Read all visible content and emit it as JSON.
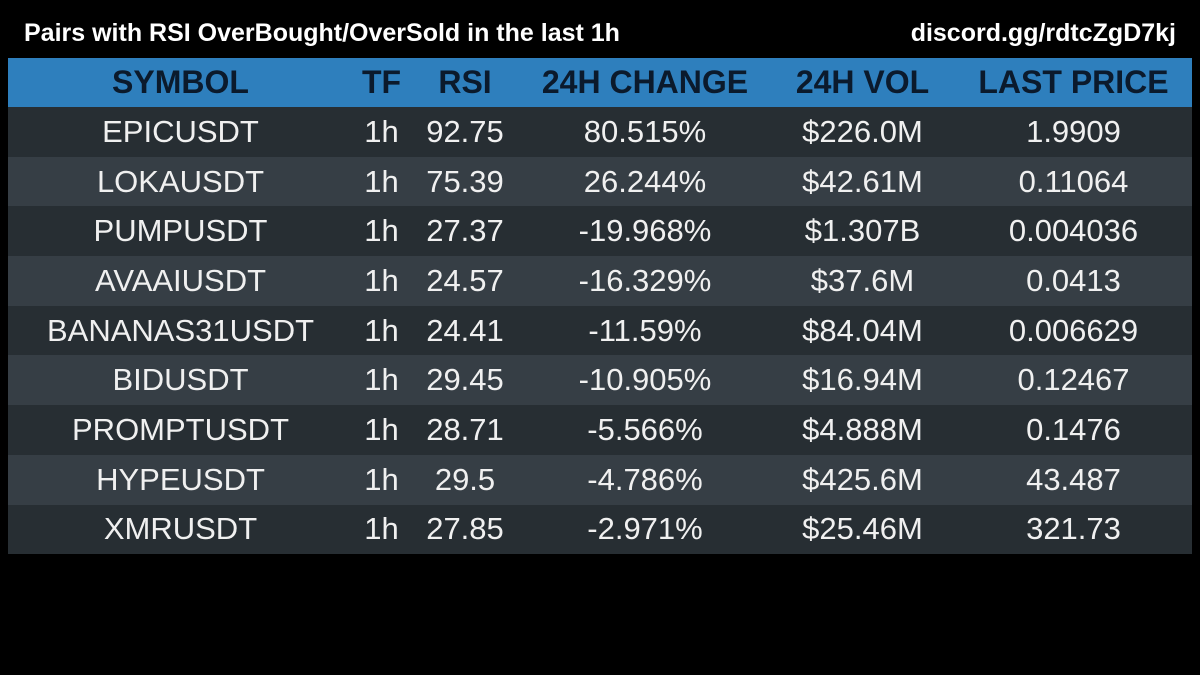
{
  "header": {
    "title": "Pairs with RSI OverBought/OverSold in the last 1h",
    "link": "discord.gg/rdtcZgD7kj"
  },
  "table": {
    "columns": [
      "SYMBOL",
      "TF",
      "RSI",
      "24H CHANGE",
      "24H VOL",
      "LAST PRICE"
    ],
    "rows": [
      {
        "symbol": "EPICUSDT",
        "tf": "1h",
        "rsi": "92.75",
        "change": "80.515%",
        "vol": "$226.0M",
        "price": "1.9909"
      },
      {
        "symbol": "LOKAUSDT",
        "tf": "1h",
        "rsi": "75.39",
        "change": "26.244%",
        "vol": "$42.61M",
        "price": "0.11064"
      },
      {
        "symbol": "PUMPUSDT",
        "tf": "1h",
        "rsi": "27.37",
        "change": "-19.968%",
        "vol": "$1.307B",
        "price": "0.004036"
      },
      {
        "symbol": "AVAAIUSDT",
        "tf": "1h",
        "rsi": "24.57",
        "change": "-16.329%",
        "vol": "$37.6M",
        "price": "0.0413"
      },
      {
        "symbol": "BANANAS31USDT",
        "tf": "1h",
        "rsi": "24.41",
        "change": "-11.59%",
        "vol": "$84.04M",
        "price": "0.006629"
      },
      {
        "symbol": "BIDUSDT",
        "tf": "1h",
        "rsi": "29.45",
        "change": "-10.905%",
        "vol": "$16.94M",
        "price": "0.12467"
      },
      {
        "symbol": "PROMPTUSDT",
        "tf": "1h",
        "rsi": "28.71",
        "change": "-5.566%",
        "vol": "$4.888M",
        "price": "0.1476"
      },
      {
        "symbol": "HYPEUSDT",
        "tf": "1h",
        "rsi": "29.5",
        "change": "-4.786%",
        "vol": "$425.6M",
        "price": "43.487"
      },
      {
        "symbol": "XMRUSDT",
        "tf": "1h",
        "rsi": "27.85",
        "change": "-2.971%",
        "vol": "$25.46M",
        "price": "321.73"
      }
    ]
  },
  "colors": {
    "background": "#000000",
    "header_row": "#2e7fbd",
    "row_dark": "#272e33",
    "row_light": "#363e45",
    "text": "#f0f0f0"
  }
}
